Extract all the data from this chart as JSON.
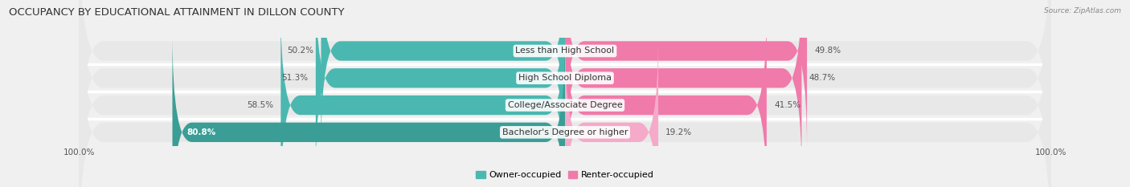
{
  "title": "OCCUPANCY BY EDUCATIONAL ATTAINMENT IN DILLON COUNTY",
  "source": "Source: ZipAtlas.com",
  "categories": [
    "Less than High School",
    "High School Diploma",
    "College/Associate Degree",
    "Bachelor's Degree or higher"
  ],
  "owner_pct": [
    50.2,
    51.3,
    58.5,
    80.8
  ],
  "renter_pct": [
    49.8,
    48.7,
    41.5,
    19.2
  ],
  "owner_color": "#4ab8b0",
  "renter_color": "#f07aaa",
  "renter_color_light": "#f4aac8",
  "owner_color_dark": "#3a9e96",
  "background_color": "#f0f0f0",
  "bar_bg_color": "#e8e8e8",
  "row_sep_color": "#ffffff",
  "title_fontsize": 9.5,
  "label_fontsize": 8,
  "pct_fontsize": 7.5,
  "tick_fontsize": 7.5,
  "bar_height": 0.72,
  "figsize": [
    14.06,
    2.33
  ],
  "dpi": 100,
  "legend_label_owner": "Owner-occupied",
  "legend_label_renter": "Renter-occupied"
}
